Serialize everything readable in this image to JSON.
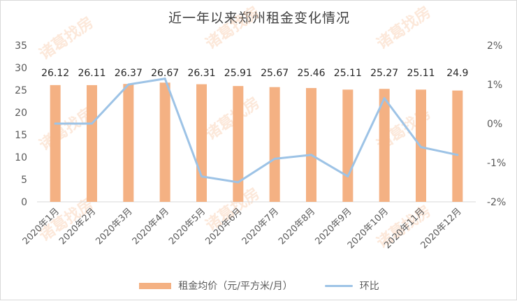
{
  "chart_data": {
    "type": "bar+line",
    "title": "近一年以来郑州租金变化情况",
    "categories": [
      "2020年1月",
      "2020年2月",
      "2020年3月",
      "2020年4月",
      "2020年5月",
      "2020年6月",
      "2020年7月",
      "2020年8月",
      "2020年9月",
      "2020年10月",
      "2020年11月",
      "2020年12月"
    ],
    "series": [
      {
        "name": "租金均价（元/平方米/月）",
        "type": "bar",
        "axis": "left",
        "color": "#f4b183",
        "values": [
          26.12,
          26.11,
          26.37,
          26.67,
          26.31,
          25.91,
          25.67,
          25.46,
          25.11,
          25.27,
          25.11,
          24.9
        ],
        "labels": [
          "26.12",
          "26.11",
          "26.37",
          "26.67",
          "26.31",
          "25.91",
          "25.67",
          "25.46",
          "25.11",
          "25.27",
          "25.11",
          "24.9"
        ]
      },
      {
        "name": "环比",
        "type": "line",
        "axis": "right",
        "color": "#9dc3e6",
        "values": [
          0.0,
          0.0,
          1.0,
          1.15,
          -1.35,
          -1.5,
          -0.9,
          -0.8,
          -1.35,
          0.65,
          -0.6,
          -0.8
        ]
      }
    ],
    "left_axis": {
      "ylim": [
        0,
        35
      ],
      "ticks": [
        0,
        5,
        10,
        15,
        20,
        25,
        30,
        35
      ]
    },
    "right_axis": {
      "ylim": [
        -2,
        2
      ],
      "ticks": [
        "-2%",
        "-1%",
        "0%",
        "1%",
        "2%"
      ]
    },
    "grid": false,
    "legend": "bottom",
    "watermark": "诸葛找房"
  }
}
